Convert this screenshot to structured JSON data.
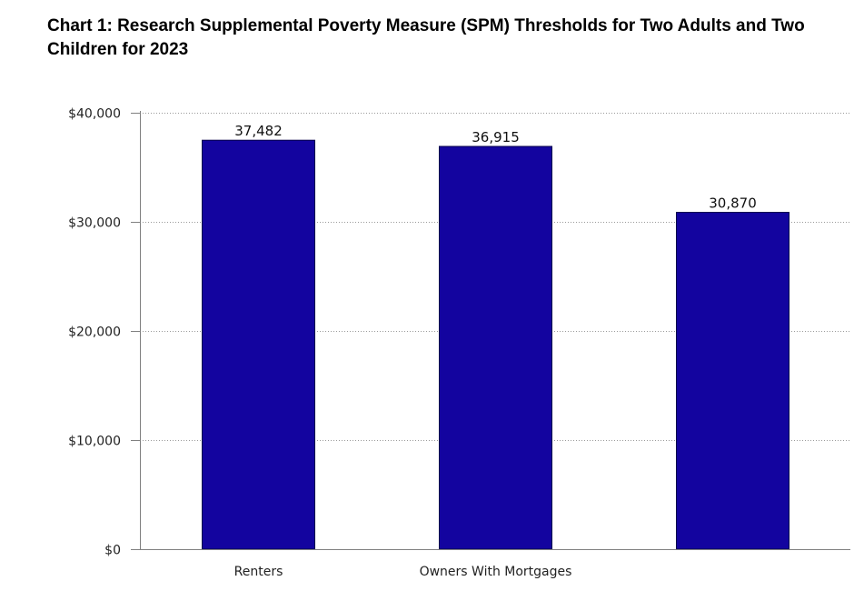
{
  "chart_data": {
    "type": "bar",
    "title": "Chart 1: Research Supplemental Poverty Measure (SPM) Thresholds for Two Adults and Two Children for 2023",
    "categories": [
      "Renters",
      "Owners With Mortgages",
      ""
    ],
    "values": [
      37482,
      36915,
      30870
    ],
    "data_labels": [
      "37,482",
      "36,915",
      "30,870"
    ],
    "y_tick_values": [
      0,
      10000,
      20000,
      30000,
      40000
    ],
    "y_tick_labels": [
      "$0",
      "$10,000",
      "$20,000",
      "$30,000",
      "$40,000"
    ],
    "xlabel": "",
    "ylabel": "",
    "ylim": [
      0,
      40000
    ],
    "grid": true,
    "legend": "none",
    "bar_color": "#13049f"
  }
}
